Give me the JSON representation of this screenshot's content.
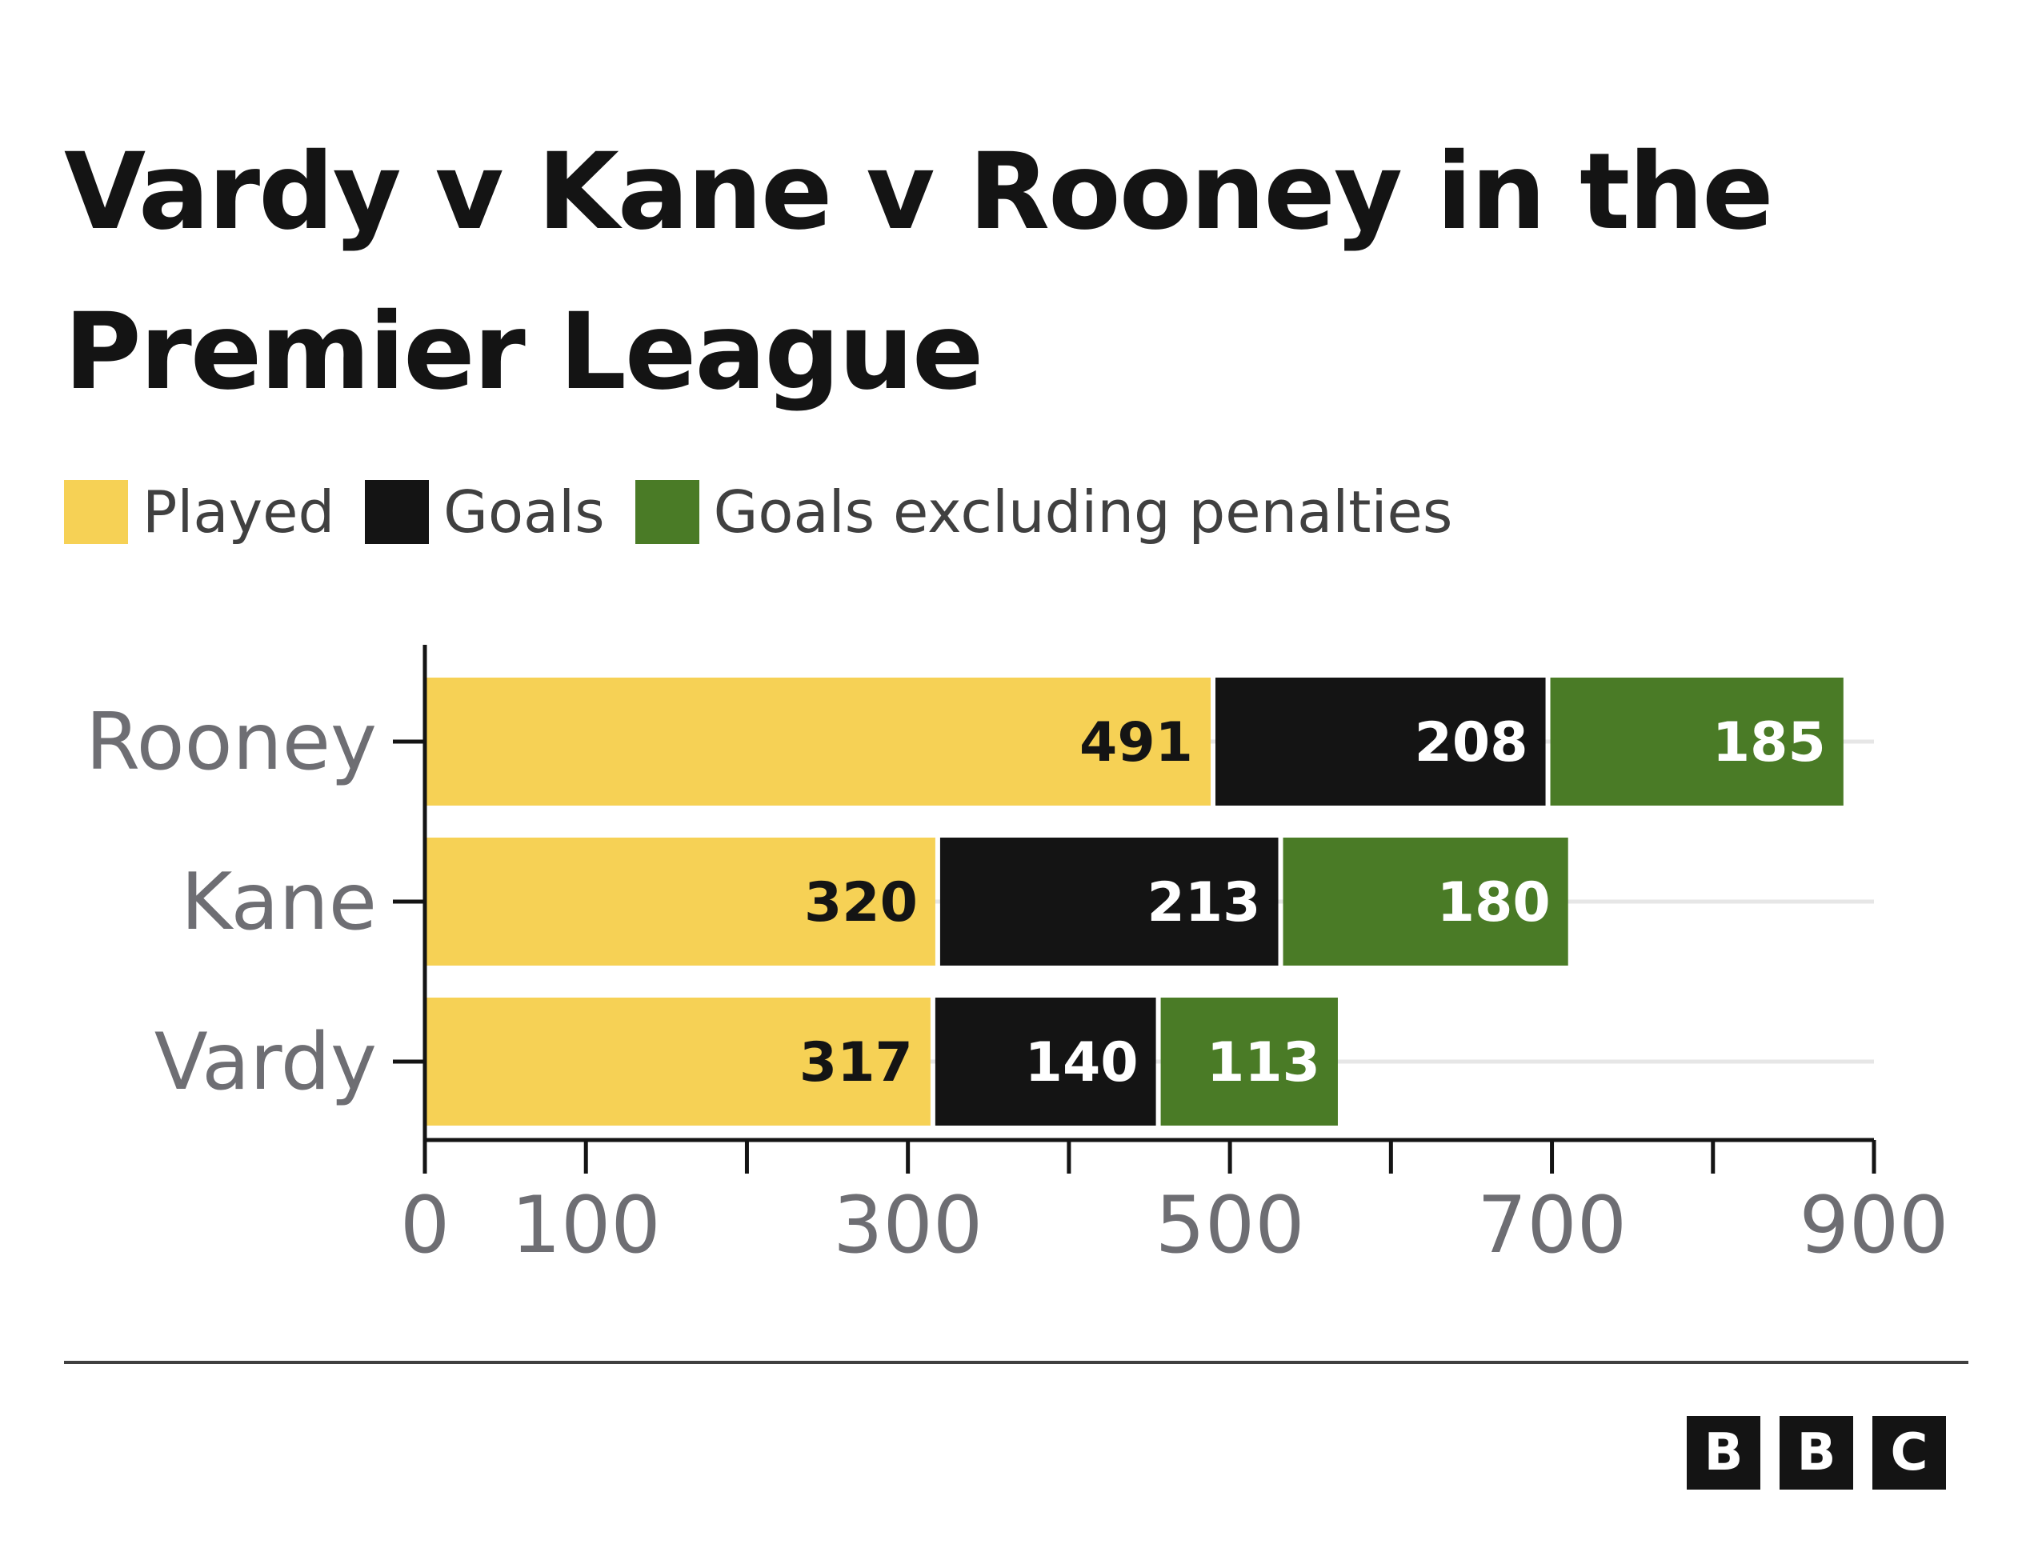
{
  "chart_data": {
    "type": "bar",
    "orientation": "horizontal",
    "stacked": true,
    "title": "Vardy v Kane v Rooney in the Premier League",
    "categories": [
      "Rooney",
      "Kane",
      "Vardy"
    ],
    "series": [
      {
        "name": "Played",
        "color": "#f6d155",
        "label_color": "#141414",
        "values": [
          491,
          320,
          317
        ]
      },
      {
        "name": "Goals",
        "color": "#141414",
        "label_color": "#ffffff",
        "values": [
          208,
          213,
          140
        ]
      },
      {
        "name": "Goals excluding penalties",
        "color": "#4a7b26",
        "label_color": "#ffffff",
        "values": [
          185,
          180,
          113
        ]
      }
    ],
    "xlim": [
      0,
      900
    ],
    "xticks": [
      0,
      100,
      200,
      300,
      400,
      500,
      600,
      700,
      800,
      900
    ],
    "xtick_labels": [
      "0",
      "100",
      "300",
      "500",
      "700",
      "900"
    ],
    "xlabel": "",
    "ylabel": "",
    "grid": true,
    "legend_position": "top-left"
  },
  "footer": {
    "logo_letters": [
      "B",
      "B",
      "C"
    ]
  }
}
